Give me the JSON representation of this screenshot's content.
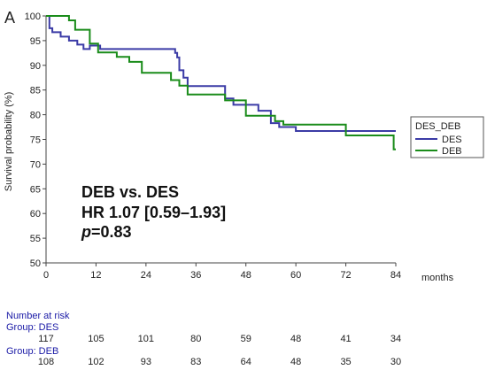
{
  "panel_letter": "A",
  "chart_data": {
    "type": "line",
    "step": true,
    "ylabel": "Survival probability (%)",
    "xlabel": "months",
    "xlim": [
      0,
      84
    ],
    "ylim": [
      50,
      100
    ],
    "x_ticks": [
      0,
      12,
      24,
      36,
      48,
      60,
      72,
      84
    ],
    "y_ticks": [
      50,
      55,
      60,
      65,
      70,
      75,
      80,
      85,
      90,
      95,
      100
    ],
    "grid": false,
    "legend": {
      "title": "DES_DEB",
      "placement": "right",
      "entries": [
        "DES",
        "DEB"
      ]
    },
    "series": [
      {
        "name": "DES",
        "color": "#3b3ba6",
        "x": [
          0,
          0.8,
          1.5,
          3.5,
          5.5,
          7.5,
          9,
          10.5,
          12,
          13,
          31,
          31.5,
          32,
          33,
          34,
          43,
          45,
          51,
          54,
          56,
          60,
          84
        ],
        "y": [
          100,
          97.5,
          96.7,
          95.8,
          95.0,
          94.2,
          93.3,
          94.0,
          94.0,
          93.3,
          92.5,
          91.6,
          89.0,
          87.5,
          85.8,
          83.3,
          82.0,
          80.8,
          78.3,
          77.5,
          76.7,
          76.7
        ]
      },
      {
        "name": "DEB",
        "color": "#1a8c1a",
        "x": [
          0,
          5.5,
          7,
          10.5,
          12.5,
          17,
          20,
          23,
          30,
          32,
          34,
          43,
          45,
          48,
          51,
          55,
          57,
          72,
          72.5,
          83.5,
          84
        ],
        "y": [
          100,
          99.1,
          97.2,
          94.4,
          92.6,
          91.7,
          90.7,
          88.5,
          87.0,
          85.9,
          84.1,
          82.9,
          82.9,
          79.8,
          79.8,
          78.7,
          78.0,
          75.8,
          75.8,
          73.0,
          73.0
        ]
      }
    ],
    "annotations": {
      "line1": "DEB vs. DES",
      "line2": "HR 1.07 [0.59–1.93]",
      "p_label": "p",
      "p_value": "=0.83"
    }
  },
  "risk_table": {
    "title": "Number at risk",
    "groups": [
      {
        "label": "Group: DES",
        "values": [
          117,
          105,
          101,
          80,
          59,
          48,
          41,
          34
        ]
      },
      {
        "label": "Group: DEB",
        "values": [
          108,
          102,
          93,
          83,
          64,
          48,
          35,
          30
        ]
      }
    ]
  }
}
